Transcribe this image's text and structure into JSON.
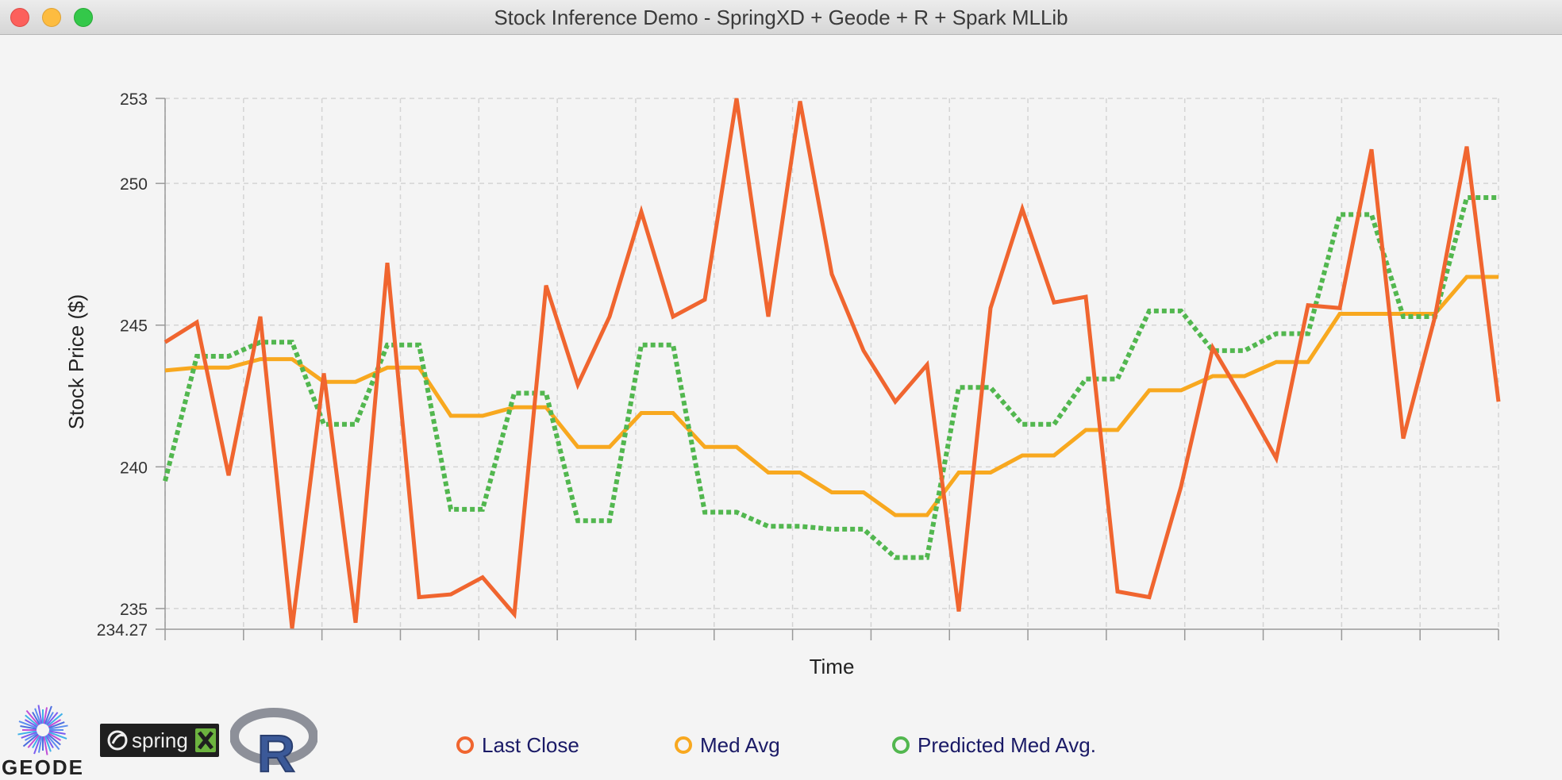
{
  "window": {
    "title": "Stock Inference Demo - SpringXD + Geode + R + Spark MLLib"
  },
  "chart_data": {
    "type": "line",
    "xlabel": "Time",
    "ylabel": "Stock Price ($)",
    "ylim": [
      234.27,
      253
    ],
    "yticks": [
      {
        "value": 234.27,
        "label": "234.27"
      },
      {
        "value": 235,
        "label": "235"
      },
      {
        "value": 240,
        "label": "240"
      },
      {
        "value": 245,
        "label": "245"
      },
      {
        "value": 250,
        "label": "250"
      },
      {
        "value": 253,
        "label": "253"
      }
    ],
    "x_count": 43,
    "grid": true,
    "legend_position": "bottom",
    "series": [
      {
        "name": "Last Close",
        "color": "#f0652f",
        "style": "solid",
        "values": [
          244.4,
          245.1,
          239.7,
          245.3,
          234.3,
          243.3,
          234.5,
          247.2,
          235.4,
          235.5,
          236.1,
          234.8,
          246.4,
          242.9,
          245.3,
          249.0,
          245.3,
          245.9,
          253.0,
          245.3,
          252.9,
          246.8,
          244.1,
          242.3,
          243.6,
          234.9,
          245.6,
          249.1,
          245.8,
          246.0,
          235.6,
          235.4,
          239.3,
          244.2,
          242.3,
          240.3,
          245.7,
          245.6,
          251.2,
          241.0,
          245.3,
          251.3,
          242.3
        ]
      },
      {
        "name": "Med Avg",
        "color": "#f8a81f",
        "style": "solid",
        "values": [
          243.4,
          243.5,
          243.5,
          243.8,
          243.8,
          243.0,
          243.0,
          243.5,
          243.5,
          241.8,
          241.8,
          242.1,
          242.1,
          240.7,
          240.7,
          241.9,
          241.9,
          240.7,
          240.7,
          239.8,
          239.8,
          239.1,
          239.1,
          238.3,
          238.3,
          239.8,
          239.8,
          240.4,
          240.4,
          241.3,
          241.3,
          242.7,
          242.7,
          243.2,
          243.2,
          243.7,
          243.7,
          245.4,
          245.4,
          245.4,
          245.4,
          246.7,
          246.7
        ]
      },
      {
        "name": "Predicted Med Avg.",
        "color": "#52b74f",
        "style": "dotted",
        "values": [
          239.5,
          243.9,
          243.9,
          244.4,
          244.4,
          241.5,
          241.5,
          244.3,
          244.3,
          238.5,
          238.5,
          242.6,
          242.6,
          238.1,
          238.1,
          244.3,
          244.3,
          238.4,
          238.4,
          237.9,
          237.9,
          237.8,
          237.8,
          236.8,
          236.8,
          242.8,
          242.8,
          241.5,
          241.5,
          243.1,
          243.1,
          245.5,
          245.5,
          244.1,
          244.1,
          244.7,
          244.7,
          248.9,
          248.9,
          245.3,
          245.3,
          249.5,
          249.5
        ]
      }
    ]
  },
  "legend": [
    {
      "label": "Last Close",
      "color": "#f0652f"
    },
    {
      "label": "Med Avg",
      "color": "#f8a81f"
    },
    {
      "label": "Predicted Med Avg.",
      "color": "#52b74f"
    }
  ],
  "logos": {
    "geode": "GEODE",
    "spring": "spring",
    "r": "R"
  }
}
